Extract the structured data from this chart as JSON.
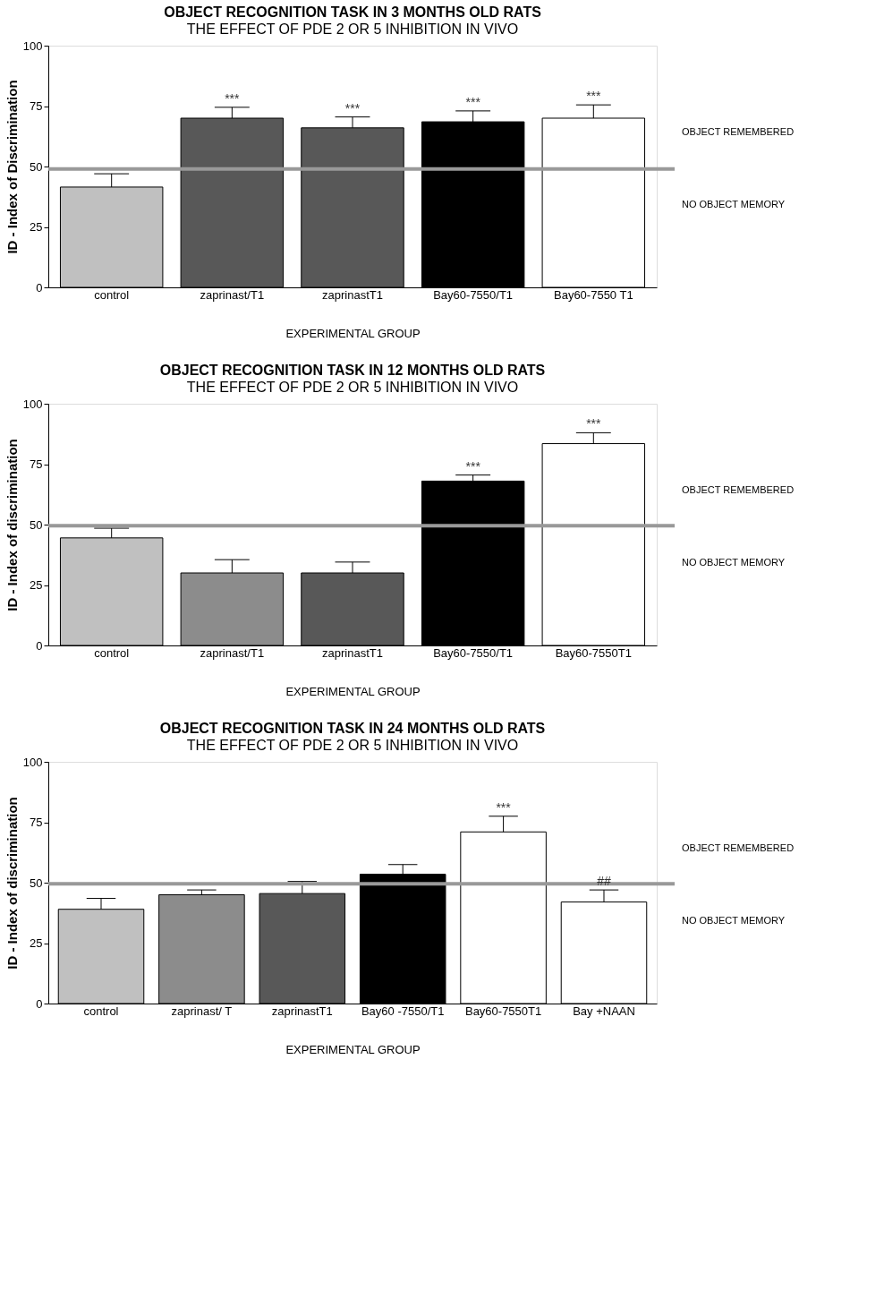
{
  "chart_data": [
    {
      "type": "bar",
      "title": "OBJECT RECOGNITION TASK IN 3 MONTHS OLD RATS",
      "subtitle": "THE EFFECT OF PDE 2 OR 5 INHIBITION IN VIVO",
      "xlabel": "EXPERIMENTAL GROUP",
      "ylabel": "ID - Index of Discrimination",
      "categories": [
        "control",
        "zaprinast/T1",
        "zaprinastT1",
        "Bay60-7550/T1",
        "Bay60-7550 T1"
      ],
      "values": [
        41.5,
        70,
        66,
        68.5,
        70
      ],
      "colors": [
        "#c0c0c0",
        "#585858",
        "#585858",
        "#000000",
        "#ffffff"
      ],
      "errors": [
        [
          41.5,
          47
        ],
        [
          70,
          74.5
        ],
        [
          66,
          70.5
        ],
        [
          68.5,
          73
        ],
        [
          70,
          75.5
        ]
      ],
      "ylim": [
        0,
        100
      ],
      "yticks": [
        0,
        25,
        50,
        75,
        100
      ],
      "ref_lines": [
        {
          "axis": "y",
          "value": 49,
          "color": "#999999"
        }
      ],
      "annotations": [
        {
          "text": "***",
          "x": "zaprinast/T1",
          "y": 74.5
        },
        {
          "text": "***",
          "x": "zaprinastT1",
          "y": 70.5
        },
        {
          "text": "***",
          "x": "Bay60-7550/T1",
          "y": 73
        },
        {
          "text": "***",
          "x": "Bay60-7550 T1",
          "y": 75.5
        },
        "OBJECT REMEMBERED",
        "NO OBJECT MEMORY"
      ]
    },
    {
      "type": "bar",
      "title": "OBJECT RECOGNITION TASK IN 12 MONTHS OLD RATS",
      "subtitle": "THE EFFECT OF PDE 2 OR 5 INHIBITION IN VIVO",
      "xlabel": "EXPERIMENTAL GROUP",
      "ylabel": "ID - Index of discrimination",
      "categories": [
        "control",
        "zaprinast/T1",
        "zaprinastT1",
        "Bay60-7550/T1",
        "Bay60-7550T1"
      ],
      "values": [
        44.5,
        30,
        30,
        68,
        83.5
      ],
      "colors": [
        "#c0c0c0",
        "#8c8c8c",
        "#585858",
        "#000000",
        "#ffffff"
      ],
      "errors": [
        [
          44.5,
          48.5
        ],
        [
          30,
          35.5
        ],
        [
          30,
          34.5
        ],
        [
          68,
          70.5
        ],
        [
          83.5,
          88
        ]
      ],
      "ylim": [
        0,
        100
      ],
      "yticks": [
        0,
        25,
        50,
        75,
        100
      ],
      "ref_lines": [
        {
          "axis": "y",
          "value": 49.5,
          "color": "#999999"
        }
      ],
      "annotations": [
        {
          "text": "***",
          "x": "Bay60-7550/T1",
          "y": 70.5
        },
        {
          "text": "***",
          "x": "Bay60-7550T1",
          "y": 88
        },
        "OBJECT REMEMBERED",
        "NO OBJECT MEMORY"
      ]
    },
    {
      "type": "bar",
      "title": "OBJECT RECOGNITION TASK IN 24 MONTHS OLD RATS",
      "subtitle": "THE EFFECT OF PDE 2 OR 5 INHIBITION IN VIVO",
      "xlabel": "EXPERIMENTAL GROUP",
      "ylabel": "ID - Index of discrimination",
      "categories": [
        "control",
        "zaprinast/ T",
        "zaprinastT1",
        "Bay60 -7550/T1",
        "Bay60-7550T1",
        "Bay +NAAN"
      ],
      "values": [
        39,
        45,
        45.5,
        53.5,
        71,
        42
      ],
      "colors": [
        "#c0c0c0",
        "#8c8c8c",
        "#585858",
        "#000000",
        "#ffffff",
        "#ffffff"
      ],
      "errors": [
        [
          39,
          43.5
        ],
        [
          45,
          47
        ],
        [
          45.5,
          50.5
        ],
        [
          53.5,
          57.5
        ],
        [
          71,
          77.5
        ],
        [
          42,
          47
        ]
      ],
      "ylim": [
        0,
        100
      ],
      "yticks": [
        0,
        25,
        50,
        75,
        100
      ],
      "ref_lines": [
        {
          "axis": "y",
          "value": 49.5,
          "color": "#999999"
        }
      ],
      "annotations": [
        {
          "text": "***",
          "x": "Bay60-7550T1",
          "y": 77.5
        },
        {
          "text": "##",
          "x": "Bay +NAAN",
          "y": 47
        },
        "OBJECT REMEMBERED",
        "NO OBJECT MEMORY"
      ]
    }
  ]
}
